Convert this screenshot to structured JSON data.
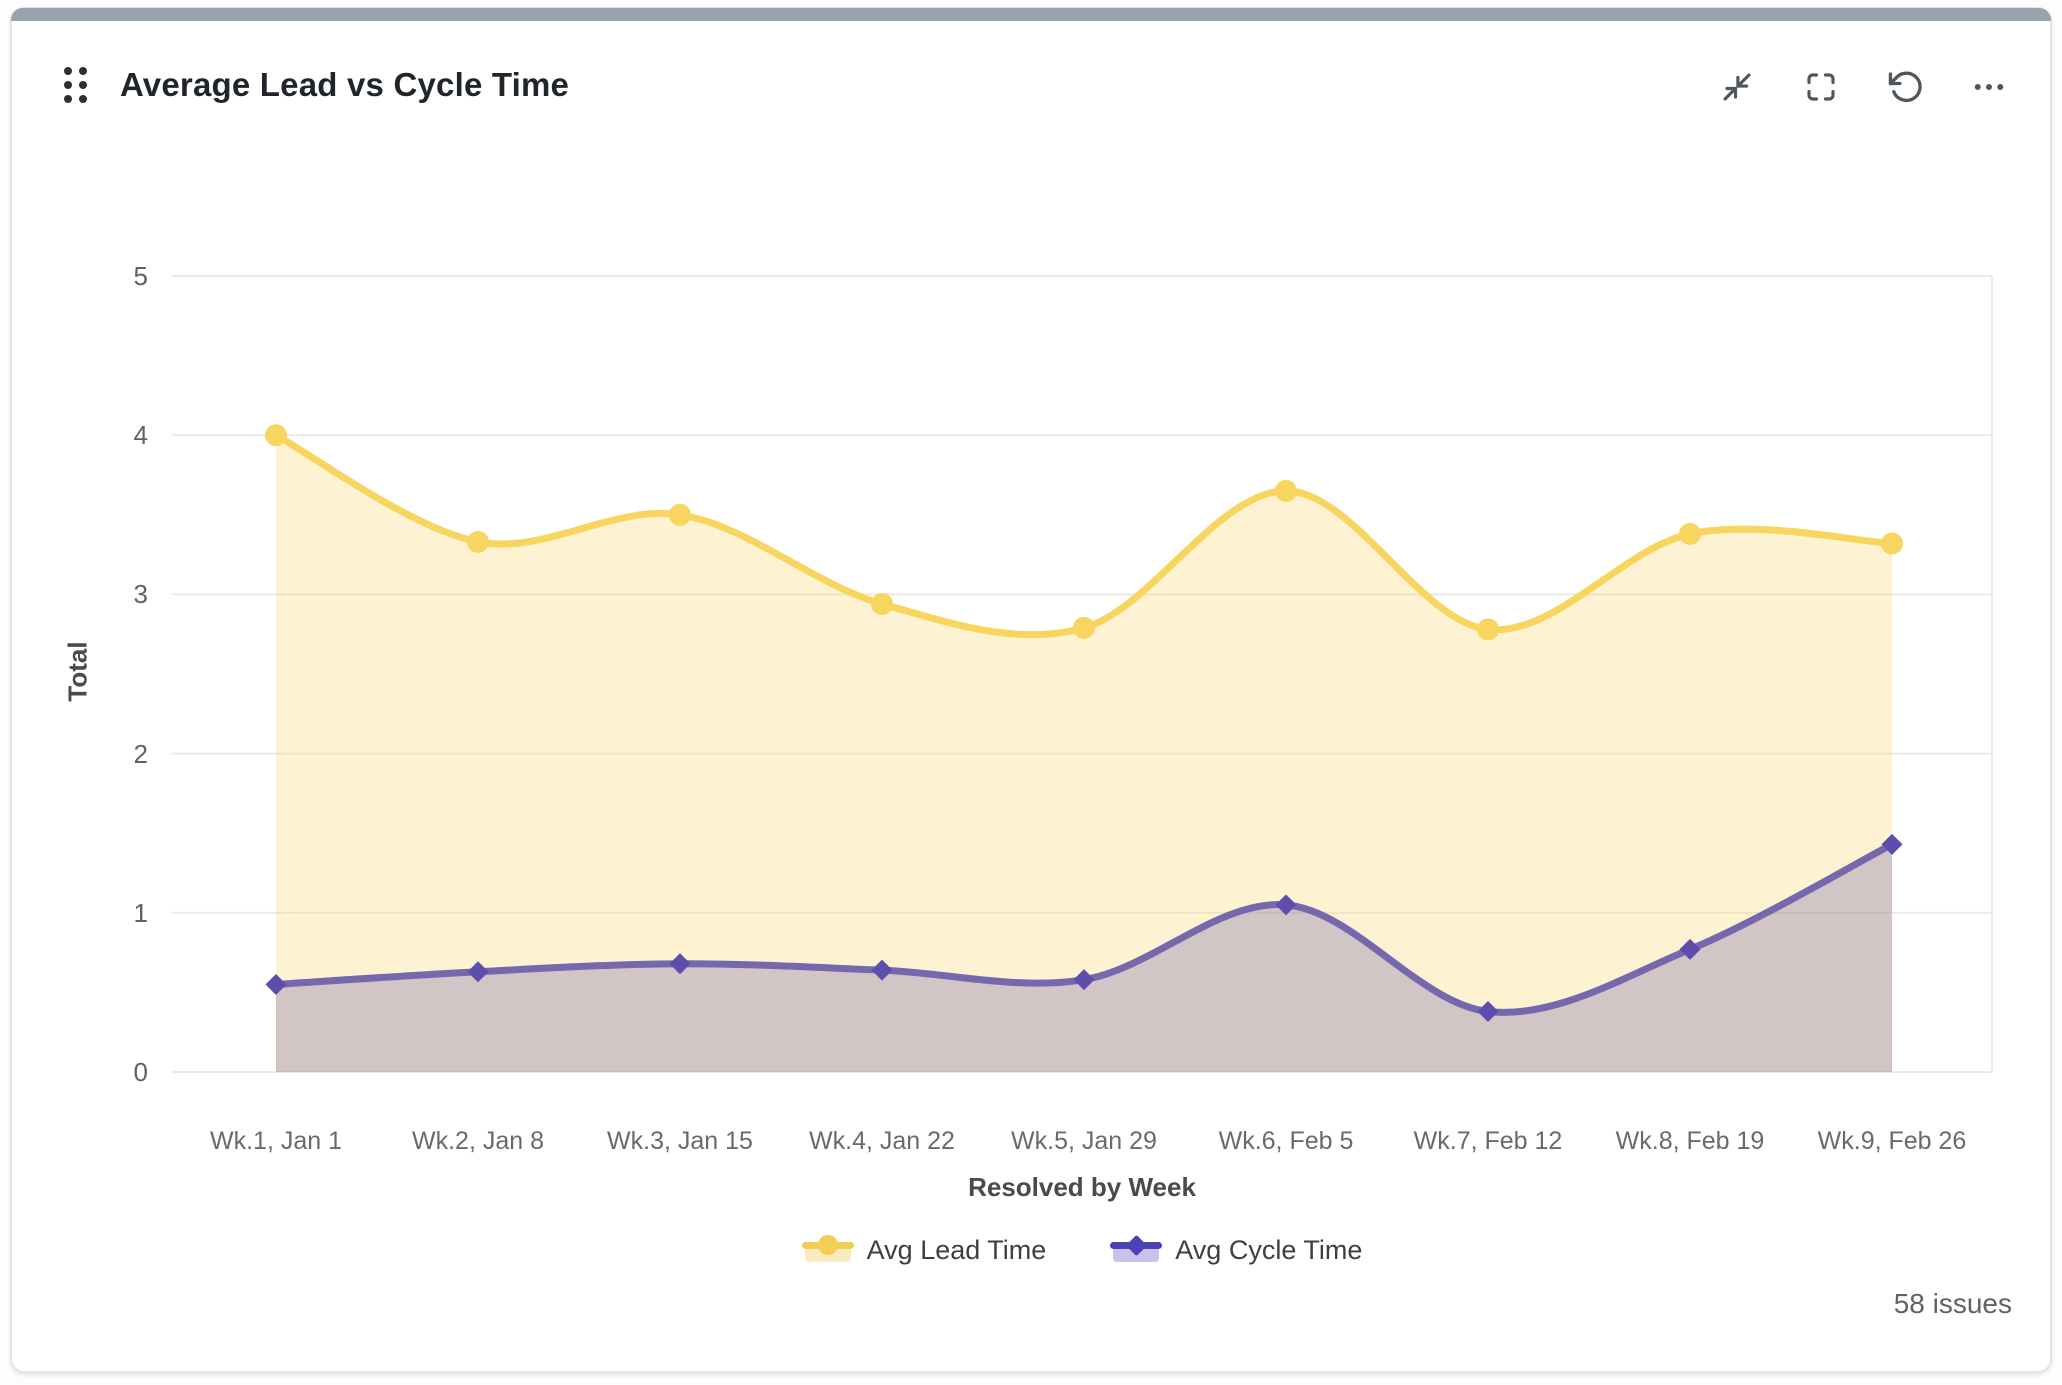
{
  "header": {
    "title": "Average Lead vs Cycle Time",
    "icons": [
      "drag-handle-icon",
      "collapse-icon",
      "fullscreen-icon",
      "reset-icon",
      "more-options-icon"
    ]
  },
  "colors": {
    "top_accent_bar": "#97a2af",
    "card_border": "#e3e6e9",
    "grid_line": "#eaeaea",
    "lead_line": "#f7d55f",
    "lead_fill": "rgba(247,213,95,0.28)",
    "cycle_line": "#7568ac",
    "cycle_marker": "#5d4eae",
    "cycle_fill": "rgba(121,104,174,0.33)",
    "legend_lead": "#f2ce52",
    "legend_lead_fill": "#faebbe",
    "legend_cycle": "#4b42b5",
    "legend_cycle_fill": "#c9c3e9"
  },
  "chart_data": {
    "type": "area",
    "title": "Average Lead vs Cycle Time",
    "xlabel": "Resolved by Week",
    "ylabel": "Total",
    "categories": [
      "Wk.1, Jan 1",
      "Wk.2, Jan 8",
      "Wk.3, Jan 15",
      "Wk.4, Jan 22",
      "Wk.5, Jan 29",
      "Wk.6, Feb 5",
      "Wk.7, Feb 12",
      "Wk.8, Feb 19",
      "Wk.9, Feb 26"
    ],
    "series": [
      {
        "name": "Avg Lead Time",
        "values": [
          4.0,
          3.33,
          3.5,
          2.94,
          2.79,
          3.65,
          2.78,
          3.38,
          3.32
        ],
        "color": "#f7d55f",
        "fill": "rgba(247,213,95,0.28)",
        "marker": "circle",
        "marker_color": "#f7d55f",
        "legend_color": "#f2ce52",
        "legend_fill": "#faebbe"
      },
      {
        "name": "Avg Cycle Time",
        "values": [
          0.55,
          0.63,
          0.68,
          0.64,
          0.58,
          1.05,
          0.38,
          0.77,
          1.43
        ],
        "color": "#7568ac",
        "fill": "rgba(121,104,174,0.33)",
        "marker": "diamond",
        "marker_color": "#5d4eae",
        "legend_color": "#4b42b5",
        "legend_fill": "#c9c3e9"
      }
    ],
    "ylim": [
      0,
      5
    ],
    "yticks": [
      5,
      4,
      3,
      2,
      1,
      0
    ],
    "grid": true,
    "legend_position": "bottom"
  },
  "footer": {
    "issues_count": "58 issues"
  }
}
